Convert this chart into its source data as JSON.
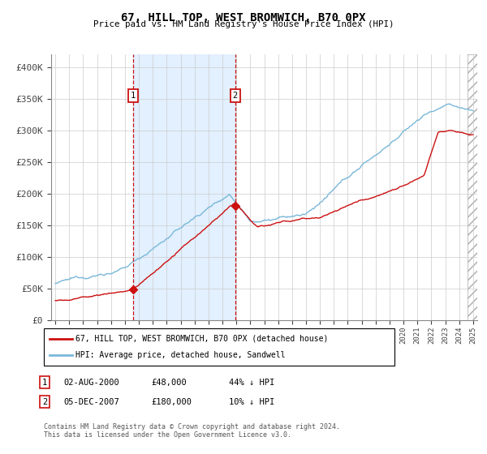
{
  "title": "67, HILL TOP, WEST BROMWICH, B70 0PX",
  "subtitle": "Price paid vs. HM Land Registry's House Price Index (HPI)",
  "legend_line1": "67, HILL TOP, WEST BROMWICH, B70 0PX (detached house)",
  "legend_line2": "HPI: Average price, detached house, Sandwell",
  "annotation1_label": "1",
  "annotation1_date": "02-AUG-2000",
  "annotation1_price": "£48,000",
  "annotation1_hpi": "44% ↓ HPI",
  "annotation2_label": "2",
  "annotation2_date": "05-DEC-2007",
  "annotation2_price": "£180,000",
  "annotation2_hpi": "10% ↓ HPI",
  "footer": "Contains HM Land Registry data © Crown copyright and database right 2024.\nThis data is licensed under the Open Government Licence v3.0.",
  "hpi_color": "#7ab8d9",
  "price_color": "#cc1111",
  "marker_color": "#cc1111",
  "bg_color": "#ddeeff",
  "grid_color": "#cccccc",
  "annotation_vline_color": "#cc1111",
  "box_color": "#cc1111",
  "ylim": [
    0,
    420000
  ],
  "yticks": [
    0,
    50000,
    100000,
    150000,
    200000,
    250000,
    300000,
    350000,
    400000
  ],
  "year_start": 1995,
  "year_end": 2025,
  "sale1_year": 2000.58,
  "sale1_price": 48000,
  "sale2_year": 2007.92,
  "sale2_price": 180000
}
